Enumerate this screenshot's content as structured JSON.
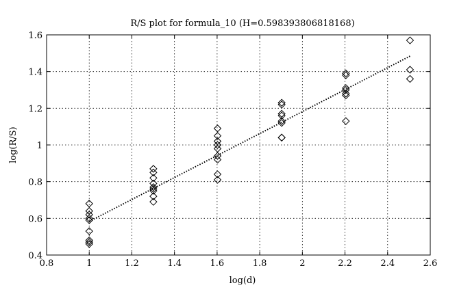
{
  "chart_data": {
    "type": "scatter",
    "title": "R/S plot for formula_10 (H=0.598393806818168)",
    "xlabel": "log(d)",
    "ylabel": "log(R/S)",
    "xlim": [
      0.8,
      2.6
    ],
    "ylim": [
      0.4,
      1.6
    ],
    "xticks": [
      0.8,
      1,
      1.2,
      1.4,
      1.6,
      1.8,
      2,
      2.2,
      2.4,
      2.6
    ],
    "xtick_labels": [
      "0.8",
      "1",
      "1.2",
      "1.4",
      "1.6",
      "1.8",
      "2",
      "2.2",
      "2.4",
      "2.6"
    ],
    "yticks": [
      0.4,
      0.6,
      0.8,
      1,
      1.2,
      1.4,
      1.6
    ],
    "ytick_labels": [
      "0.4",
      "0.6",
      "0.8",
      "1",
      "1.2",
      "1.4",
      "1.6"
    ],
    "grid": true,
    "marker": "diamond",
    "points": [
      {
        "x": 1.0,
        "y": 0.68
      },
      {
        "x": 1.0,
        "y": 0.64
      },
      {
        "x": 1.0,
        "y": 0.62
      },
      {
        "x": 1.0,
        "y": 0.6
      },
      {
        "x": 1.0,
        "y": 0.59
      },
      {
        "x": 1.0,
        "y": 0.53
      },
      {
        "x": 1.0,
        "y": 0.48
      },
      {
        "x": 1.0,
        "y": 0.47
      },
      {
        "x": 1.0,
        "y": 0.46
      },
      {
        "x": 1.301,
        "y": 0.87
      },
      {
        "x": 1.301,
        "y": 0.85
      },
      {
        "x": 1.301,
        "y": 0.82
      },
      {
        "x": 1.301,
        "y": 0.79
      },
      {
        "x": 1.301,
        "y": 0.77
      },
      {
        "x": 1.301,
        "y": 0.76
      },
      {
        "x": 1.301,
        "y": 0.75
      },
      {
        "x": 1.301,
        "y": 0.72
      },
      {
        "x": 1.301,
        "y": 0.69
      },
      {
        "x": 1.602,
        "y": 1.09
      },
      {
        "x": 1.602,
        "y": 1.05
      },
      {
        "x": 1.602,
        "y": 1.02
      },
      {
        "x": 1.602,
        "y": 1.0
      },
      {
        "x": 1.602,
        "y": 0.98
      },
      {
        "x": 1.602,
        "y": 0.94
      },
      {
        "x": 1.602,
        "y": 0.92
      },
      {
        "x": 1.602,
        "y": 0.84
      },
      {
        "x": 1.602,
        "y": 0.81
      },
      {
        "x": 1.903,
        "y": 1.23
      },
      {
        "x": 1.903,
        "y": 1.22
      },
      {
        "x": 1.903,
        "y": 1.17
      },
      {
        "x": 1.903,
        "y": 1.16
      },
      {
        "x": 1.903,
        "y": 1.13
      },
      {
        "x": 1.903,
        "y": 1.12
      },
      {
        "x": 1.903,
        "y": 1.04
      },
      {
        "x": 1.903,
        "y": 1.04
      },
      {
        "x": 2.204,
        "y": 1.39
      },
      {
        "x": 2.204,
        "y": 1.38
      },
      {
        "x": 2.204,
        "y": 1.31
      },
      {
        "x": 2.204,
        "y": 1.3
      },
      {
        "x": 2.204,
        "y": 1.28
      },
      {
        "x": 2.204,
        "y": 1.27
      },
      {
        "x": 2.204,
        "y": 1.13
      },
      {
        "x": 2.505,
        "y": 1.57
      },
      {
        "x": 2.505,
        "y": 1.41
      },
      {
        "x": 2.505,
        "y": 1.36
      }
    ],
    "fit_line": {
      "x": [
        1.0,
        2.505
      ],
      "y": [
        0.583,
        1.484
      ],
      "style": "dotted"
    }
  }
}
